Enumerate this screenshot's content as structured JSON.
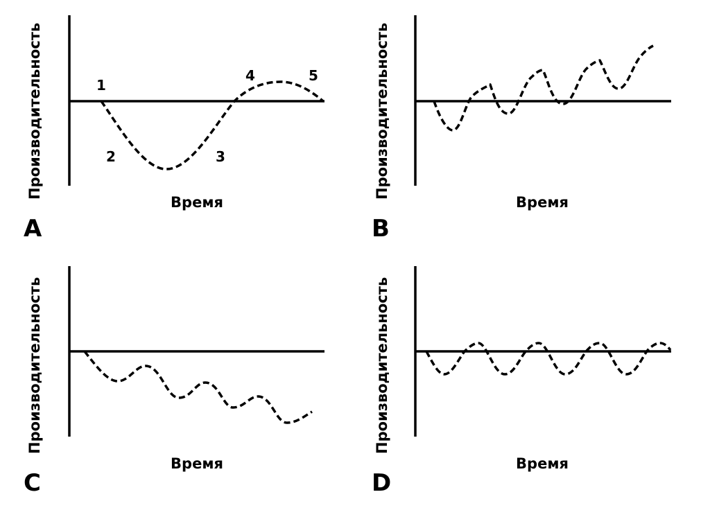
{
  "panels": [
    {
      "letter": "A",
      "ylabel": "Производительность",
      "xlabel": "Время",
      "markers": [
        "1",
        "2",
        "3",
        "4",
        "5"
      ]
    },
    {
      "letter": "B",
      "ylabel": "Производительность",
      "xlabel": "Время"
    },
    {
      "letter": "C",
      "ylabel": "Производительность",
      "xlabel": "Время"
    },
    {
      "letter": "D",
      "ylabel": "Производительность",
      "xlabel": "Время"
    }
  ]
}
